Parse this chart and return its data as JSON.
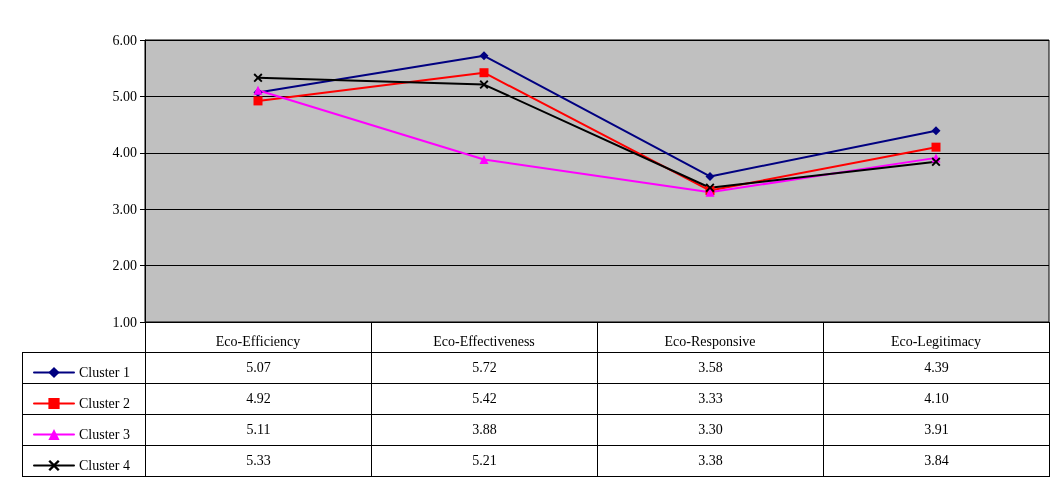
{
  "chart_data": {
    "type": "line",
    "categories": [
      "Eco-Efficiency",
      "Eco-Effectiveness",
      "Eco-Responsive",
      "Eco-Legitimacy"
    ],
    "series": [
      {
        "name": "Cluster 1",
        "color": "#000080",
        "marker": "diamond",
        "values": [
          5.07,
          5.72,
          3.58,
          4.39
        ],
        "value_labels": [
          "5.07",
          "5.72",
          "3.58",
          "4.39"
        ]
      },
      {
        "name": "Cluster 2",
        "color": "#ff0000",
        "marker": "square",
        "values": [
          4.92,
          5.42,
          3.33,
          4.1
        ],
        "value_labels": [
          "4.92",
          "5.42",
          "3.33",
          "4.10"
        ]
      },
      {
        "name": "Cluster 3",
        "color": "#ff00ff",
        "marker": "triangle",
        "values": [
          5.11,
          3.88,
          3.3,
          3.91
        ],
        "value_labels": [
          "5.11",
          "3.88",
          "3.30",
          "3.91"
        ]
      },
      {
        "name": "Cluster 4",
        "color": "#000000",
        "marker": "cross",
        "values": [
          5.33,
          5.21,
          3.38,
          3.84
        ],
        "value_labels": [
          "5.33",
          "5.21",
          "3.38",
          "3.84"
        ]
      }
    ],
    "ylim": [
      1,
      6
    ],
    "yticks": [
      {
        "value": 1,
        "label": "1.00"
      },
      {
        "value": 2,
        "label": "2.00"
      },
      {
        "value": 3,
        "label": "3.00"
      },
      {
        "value": 4,
        "label": "4.00"
      },
      {
        "value": 5,
        "label": "5.00"
      },
      {
        "value": 6,
        "label": "6.00"
      }
    ],
    "grid": "y",
    "legend": "bottom left",
    "line_style": "solid"
  }
}
